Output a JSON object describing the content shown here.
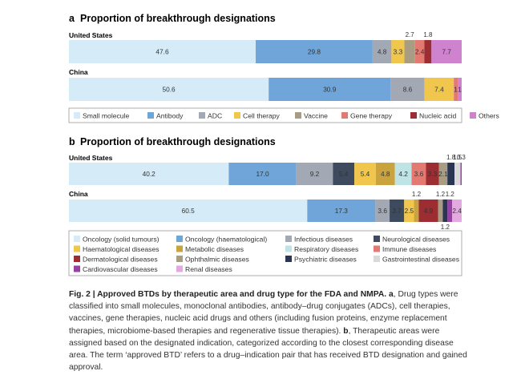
{
  "chart_data": [
    {
      "type": "bar",
      "orientation": "horizontal-stacked-percent",
      "panel_letter": "a",
      "title": "Proportion of breakthrough designations",
      "categories": [
        "Small molecule",
        "Antibody",
        "ADC",
        "Cell therapy",
        "Vaccine",
        "Gene therapy",
        "Nucleic acid",
        "Others"
      ],
      "colors": [
        "#d5ebf7",
        "#6fa5d8",
        "#a3a9b4",
        "#f0c64d",
        "#a89d82",
        "#e27a72",
        "#9b2d33",
        "#cf83cf"
      ],
      "series": [
        {
          "name": "United States",
          "values": [
            47.6,
            29.8,
            4.8,
            3.3,
            2.7,
            2.4,
            1.8,
            7.7
          ],
          "shown_labels": [
            "47.6",
            "29.8",
            "4.8",
            "3.3",
            "2.7",
            "2.4",
            "1.8",
            "7.7"
          ],
          "label_above": [
            false,
            false,
            false,
            false,
            true,
            false,
            true,
            false
          ]
        },
        {
          "name": "China",
          "values": [
            50.6,
            30.9,
            8.6,
            7.4,
            0,
            1,
            0,
            1
          ],
          "shown_labels": [
            "50.6",
            "30.9",
            "8.6",
            "7.4",
            "",
            "1",
            "",
            "1"
          ],
          "label_above": [
            false,
            false,
            false,
            false,
            false,
            false,
            false,
            false
          ]
        }
      ],
      "legend": [
        "Small molecule",
        "Antibody",
        "ADC",
        "Cell therapy",
        "Vaccine",
        "Gene therapy",
        "Nucleic acid",
        "Others"
      ],
      "legend_placement": "bottom"
    },
    {
      "type": "bar",
      "orientation": "horizontal-stacked-percent",
      "panel_letter": "b",
      "title": "Proportion of breakthrough designations",
      "categories": [
        "Oncology (solid tumours)",
        "Oncology (haematological)",
        "Infectious diseases",
        "Neurological diseases",
        "Haematological diseases",
        "Metabolic diseases",
        "Respiratory diseases",
        "Immune diseases",
        "Dermatological diseases",
        "Ophthalmic diseases",
        "Psychiatric diseases",
        "Gastrointestinal diseases",
        "Cardiovascular diseases",
        "Renal diseases"
      ],
      "colors": [
        "#d5ebf7",
        "#6fa5d8",
        "#a3a9b4",
        "#3e4a5e",
        "#f0c64d",
        "#c9a43e",
        "#bfe4e6",
        "#e27a72",
        "#9b2d33",
        "#a89d82",
        "#2a3552",
        "#d9d9d9",
        "#9b3fa8",
        "#e3a9e0"
      ],
      "series": [
        {
          "name": "United States",
          "values": [
            40.2,
            17.0,
            9.2,
            5.4,
            5.4,
            4.8,
            4.2,
            3.6,
            3.3,
            2.1,
            1.8,
            1.5,
            0.3,
            0
          ],
          "shown_labels": [
            "40.2",
            "17.0",
            "9.2",
            "5.4",
            "5.4",
            "4.8",
            "4.2",
            "3.6",
            "3.3",
            "2.1",
            "1.8",
            "1.5",
            "0.3",
            ""
          ],
          "label_above": [
            false,
            false,
            false,
            false,
            false,
            false,
            false,
            false,
            false,
            false,
            true,
            true,
            true,
            false
          ]
        },
        {
          "name": "China",
          "values": [
            60.5,
            17.3,
            3.6,
            3.7,
            2.5,
            1.2,
            0,
            0,
            4.9,
            1.2,
            1.2,
            0,
            1.2,
            2.4
          ],
          "shown_labels": [
            "60.5",
            "17.3",
            "3.6",
            "3.7",
            "2.5",
            "1.2",
            "",
            "",
            "4.9",
            "1.2",
            "1.2",
            "",
            "1.2",
            "2.4"
          ],
          "label_above": [
            false,
            false,
            false,
            false,
            false,
            true,
            false,
            false,
            false,
            true,
            false,
            false,
            true,
            false
          ],
          "label_below": [
            false,
            false,
            false,
            false,
            false,
            false,
            false,
            false,
            false,
            false,
            true,
            false,
            false,
            false
          ]
        }
      ],
      "legend": [
        "Oncology (solid tumours)",
        "Oncology (haematological)",
        "Infectious diseases",
        "Neurological diseases",
        "Haematological diseases",
        "Metabolic diseases",
        "Respiratory diseases",
        "Immune diseases",
        "Dermatological diseases",
        "Ophthalmic diseases",
        "Psychiatric diseases",
        "Gastrointestinal diseases",
        "Cardiovascular diseases",
        "Renal diseases"
      ],
      "legend_placement": "bottom"
    }
  ],
  "caption": {
    "fig": "Fig. 2 | Approved BTDs by therapeutic area and drug type for the FDA and NMPA.",
    "a_letter": "a",
    "a_text": ", Drug types were classified into small molecules, monoclonal antibodies, antibody–drug conjugates (ADCs), cell therapies, vaccines, gene therapies, nucleic acid drugs and others (including fusion proteins, enzyme replacement therapies, microbiome-based therapies and regenerative tissue therapies).",
    "b_letter": "b",
    "b_text": ", Therapeutic areas were assigned based on the designated indication, categorized according to the closest corresponding disease area. The term ‘approved BTD’ refers to a drug–indication pair that has received BTD designation and gained approval."
  }
}
